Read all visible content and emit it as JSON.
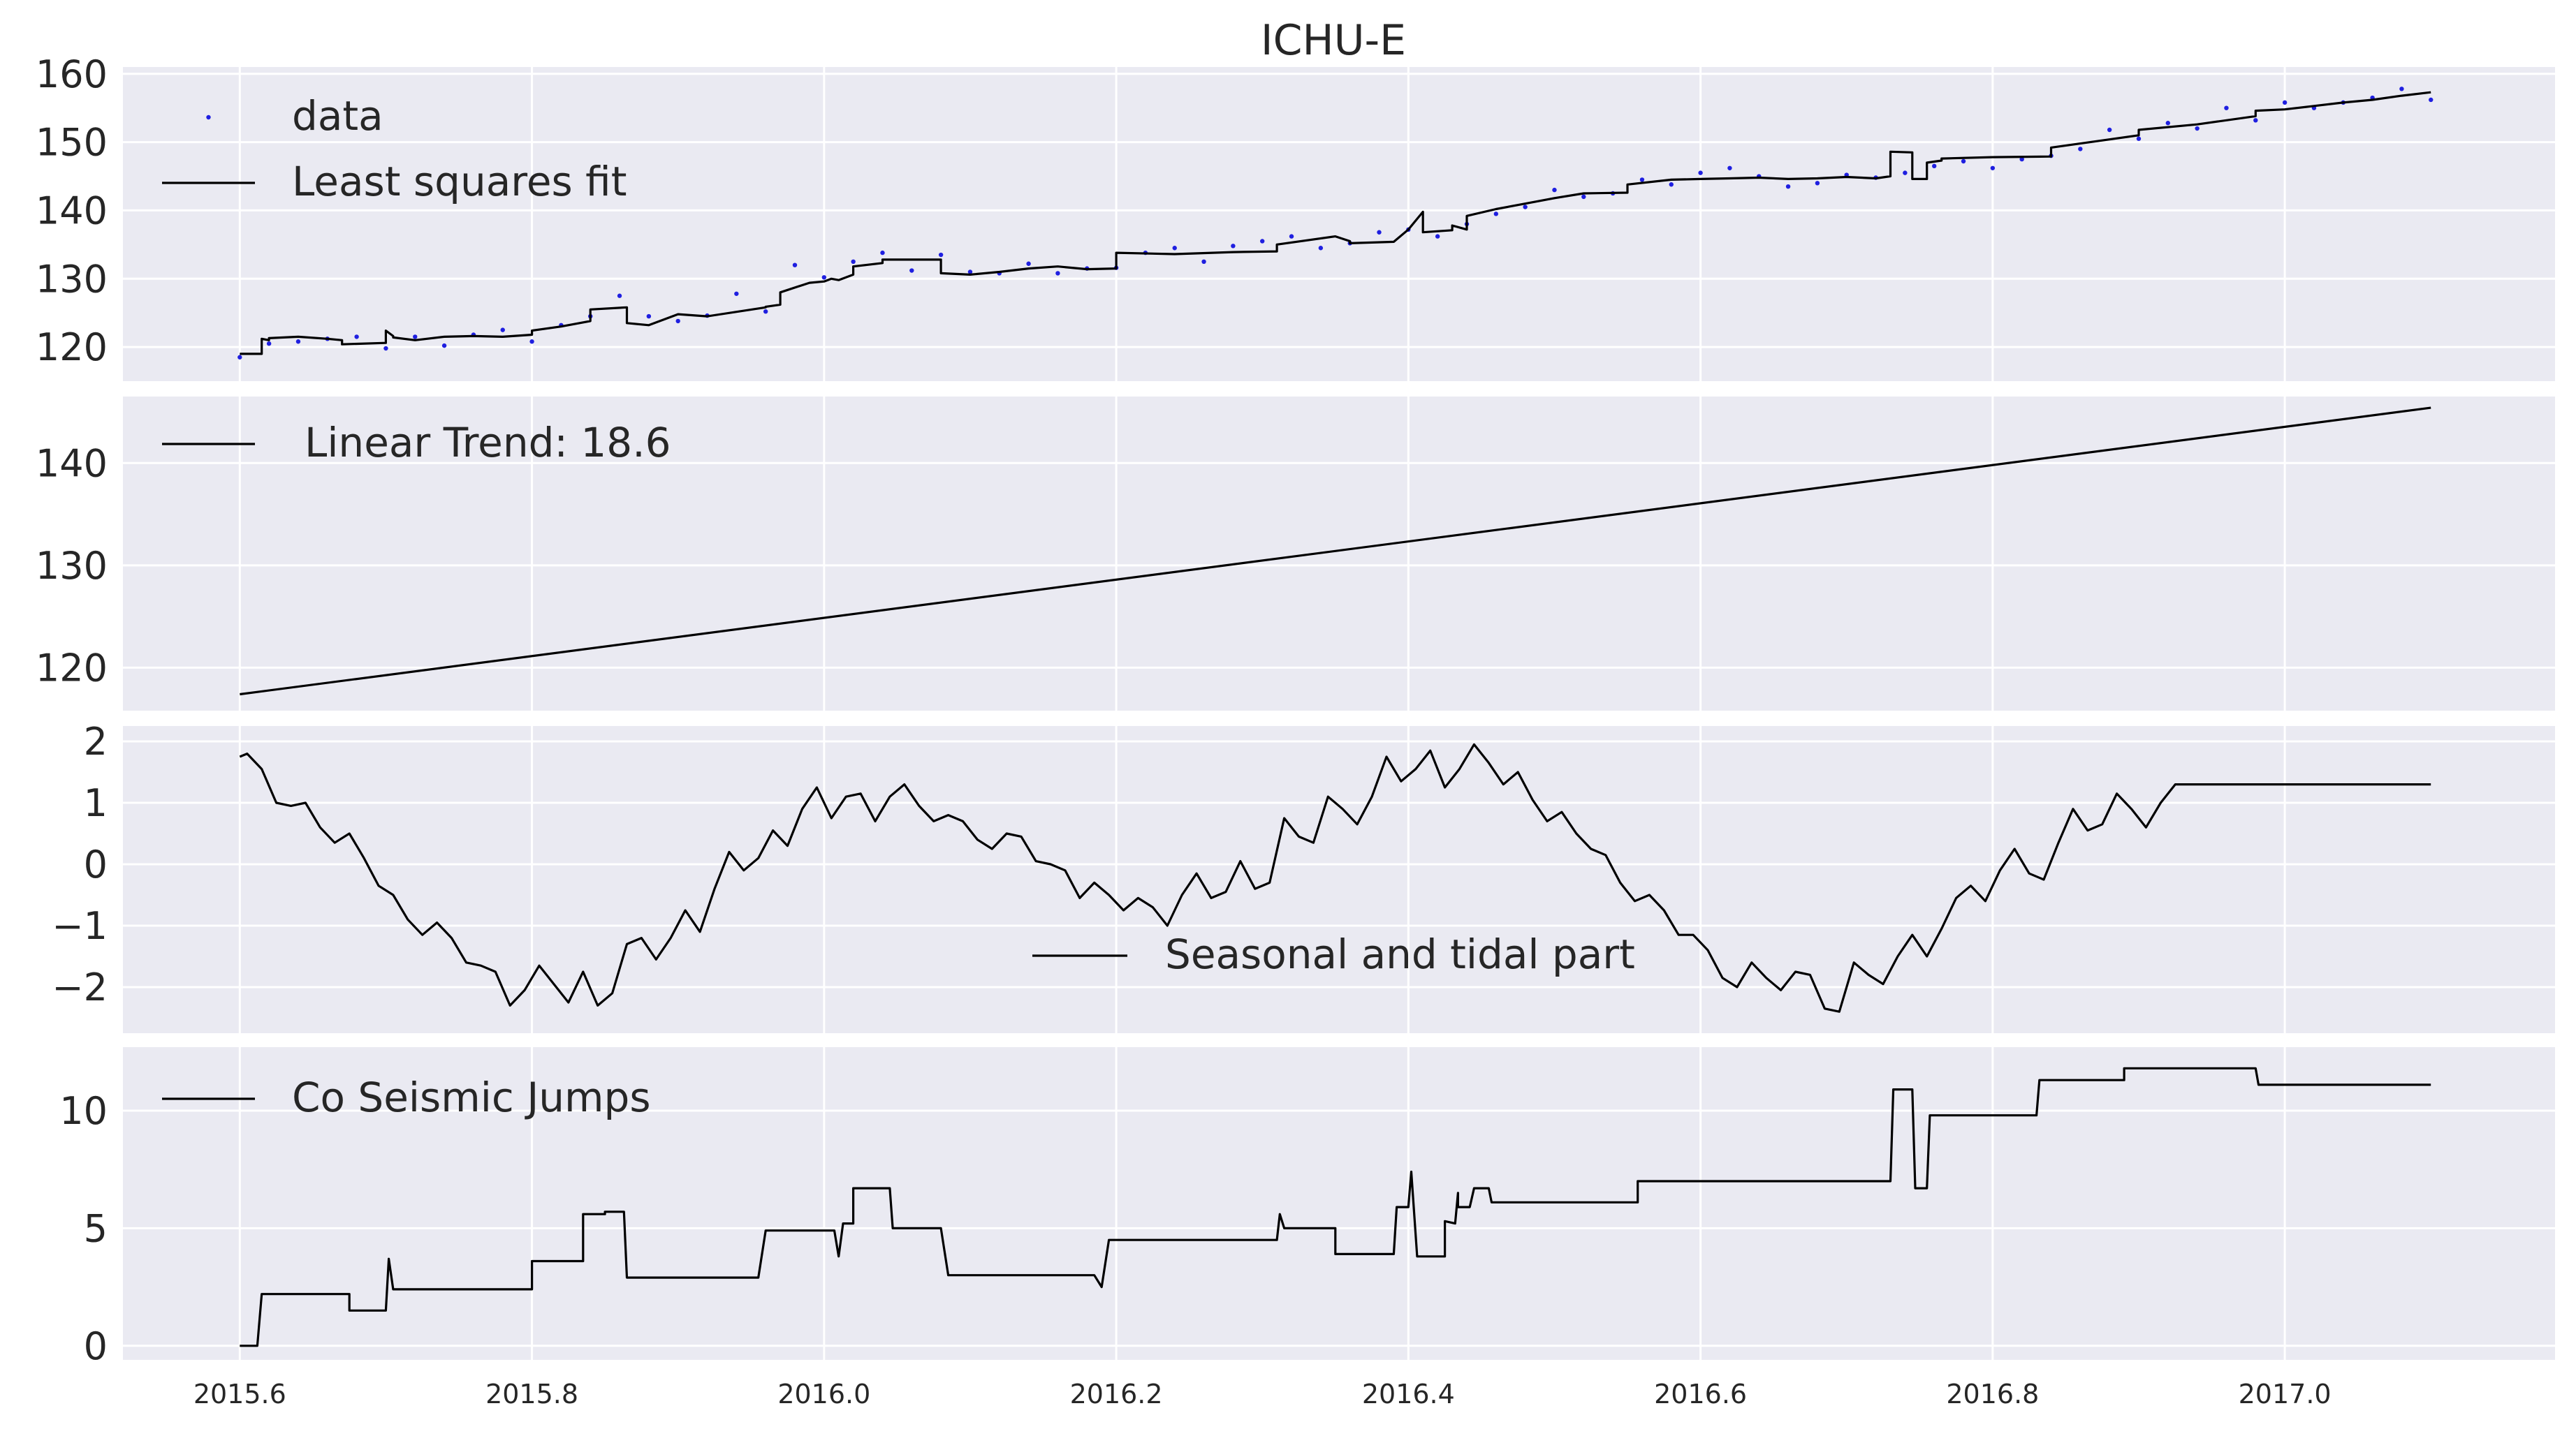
{
  "chart_data": [
    {
      "type": "line",
      "panel": "top",
      "title": "ICHU-E",
      "legend": [
        "data",
        "Least squares fit"
      ],
      "legend_placement": "top-left",
      "grid": true,
      "xlim": [
        2015.52,
        2017.185
      ],
      "ylim": [
        115,
        161
      ],
      "yticks": [
        "120",
        "130",
        "140",
        "150",
        "160"
      ],
      "series": [
        {
          "name": "data",
          "style": "scatter",
          "color": "#1f1fe0",
          "x": [
            2015.6,
            2015.62,
            2015.64,
            2015.66,
            2015.68,
            2015.7,
            2015.72,
            2015.74,
            2015.76,
            2015.78,
            2015.8,
            2015.82,
            2015.84,
            2015.86,
            2015.88,
            2015.9,
            2015.92,
            2015.94,
            2015.96,
            2015.98,
            2016.0,
            2016.02,
            2016.04,
            2016.06,
            2016.08,
            2016.1,
            2016.12,
            2016.14,
            2016.16,
            2016.18,
            2016.2,
            2016.22,
            2016.24,
            2016.26,
            2016.28,
            2016.3,
            2016.32,
            2016.34,
            2016.36,
            2016.38,
            2016.4,
            2016.42,
            2016.44,
            2016.46,
            2016.48,
            2016.5,
            2016.52,
            2016.54,
            2016.56,
            2016.58,
            2016.6,
            2016.62,
            2016.64,
            2016.66,
            2016.68,
            2016.7,
            2016.72,
            2016.74,
            2016.76,
            2016.78,
            2016.8,
            2016.82,
            2016.84,
            2016.86,
            2016.88,
            2016.9,
            2016.92,
            2016.94,
            2016.96,
            2016.98,
            2017.0,
            2017.02,
            2017.04,
            2017.06,
            2017.08,
            2017.1
          ],
          "values": [
            118.5,
            120.5,
            120.8,
            121.2,
            121.5,
            119.8,
            121.5,
            120.2,
            121.8,
            122.5,
            120.8,
            123.2,
            124.5,
            127.5,
            124.5,
            123.8,
            124.6,
            127.8,
            125.2,
            132.0,
            130.2,
            132.5,
            133.8,
            131.2,
            133.5,
            131.0,
            130.8,
            132.2,
            130.8,
            131.5,
            131.6,
            133.8,
            134.5,
            132.5,
            134.8,
            135.5,
            136.2,
            134.5,
            135.2,
            136.8,
            137.2,
            136.2,
            138.0,
            139.5,
            140.5,
            143.0,
            142.0,
            142.5,
            144.5,
            143.8,
            145.5,
            146.2,
            145.0,
            143.5,
            144.0,
            145.2,
            144.8,
            145.5,
            146.5,
            147.2,
            146.2,
            147.5,
            148.0,
            149.0,
            151.8,
            150.5,
            152.8,
            152.0,
            155.0,
            153.2,
            155.8,
            155.0,
            155.8,
            156.5,
            157.8,
            156.2
          ]
        },
        {
          "name": "Least squares fit",
          "style": "line",
          "color": "#000000",
          "x": [
            2015.6,
            2015.615,
            2015.615,
            2015.62,
            2015.62,
            2015.64,
            2015.66,
            2015.67,
            2015.67,
            2015.7,
            2015.7,
            2015.705,
            2015.705,
            2015.72,
            2015.74,
            2015.76,
            2015.78,
            2015.8,
            2015.8,
            2015.82,
            2015.84,
            2015.84,
            2015.865,
            2015.865,
            2015.88,
            2015.9,
            2015.92,
            2015.96,
            2015.96,
            2015.97,
            2015.97,
            2015.99,
            2016.0,
            2016.005,
            2016.01,
            2016.02,
            2016.02,
            2016.04,
            2016.04,
            2016.08,
            2016.08,
            2016.1,
            2016.12,
            2016.14,
            2016.16,
            2016.18,
            2016.2,
            2016.2,
            2016.24,
            2016.28,
            2016.31,
            2016.31,
            2016.35,
            2016.36,
            2016.36,
            2016.39,
            2016.4,
            2016.41,
            2016.41,
            2016.43,
            2016.43,
            2016.44,
            2016.44,
            2016.46,
            2016.48,
            2016.5,
            2016.52,
            2016.55,
            2016.55,
            2016.58,
            2016.6,
            2016.62,
            2016.64,
            2016.66,
            2016.68,
            2016.7,
            2016.72,
            2016.73,
            2016.73,
            2016.745,
            2016.745,
            2016.755,
            2016.755,
            2016.765,
            2016.765,
            2016.8,
            2016.84,
            2016.84,
            2016.86,
            2016.88,
            2016.9,
            2016.9,
            2016.94,
            2016.98,
            2016.98,
            2017.0,
            2017.02,
            2017.04,
            2017.06,
            2017.08,
            2017.1
          ],
          "values": [
            119.0,
            119.0,
            121.2,
            121.0,
            121.3,
            121.5,
            121.2,
            121.0,
            120.4,
            120.6,
            122.4,
            121.6,
            121.4,
            121.0,
            121.5,
            121.6,
            121.5,
            121.8,
            122.4,
            123.0,
            123.8,
            125.5,
            125.8,
            123.5,
            123.2,
            124.8,
            124.5,
            125.8,
            125.9,
            126.2,
            128.0,
            129.4,
            129.6,
            130.0,
            129.8,
            130.6,
            131.8,
            132.3,
            132.8,
            132.8,
            130.8,
            130.6,
            131.0,
            131.5,
            131.8,
            131.4,
            131.5,
            133.8,
            133.6,
            133.9,
            134.0,
            135.0,
            136.2,
            135.5,
            135.2,
            135.4,
            137.2,
            139.8,
            136.8,
            137.1,
            137.8,
            137.2,
            139.2,
            140.2,
            141.0,
            141.8,
            142.5,
            142.6,
            143.8,
            144.5,
            144.6,
            144.7,
            144.8,
            144.6,
            144.7,
            144.9,
            144.7,
            145.0,
            148.6,
            148.5,
            144.6,
            144.6,
            147.0,
            147.3,
            147.6,
            147.8,
            147.9,
            149.2,
            149.8,
            150.4,
            151.0,
            151.8,
            152.6,
            153.8,
            154.6,
            154.8,
            155.3,
            155.8,
            156.2,
            156.8,
            157.3
          ]
        }
      ]
    },
    {
      "type": "line",
      "panel": "second",
      "legend": [
        "Linear Trend: 18.6"
      ],
      "legend_placement": "top-left",
      "grid": true,
      "xlim": [
        2015.52,
        2017.185
      ],
      "ylim": [
        115.8,
        146.5
      ],
      "yticks": [
        "120",
        "130",
        "140"
      ],
      "series": [
        {
          "name": "Linear Trend: 18.6",
          "color": "#000000",
          "x": [
            2015.6,
            2017.1
          ],
          "values": [
            117.4,
            145.4
          ]
        }
      ]
    },
    {
      "type": "line",
      "panel": "third",
      "legend": [
        "Seasonal and tidal part"
      ],
      "legend_placement": "bottom-center",
      "grid": true,
      "xlim": [
        2015.52,
        2017.185
      ],
      "ylim": [
        -2.75,
        2.25
      ],
      "yticks": [
        "2",
        "1",
        "0",
        "−1",
        "−2"
      ],
      "series": [
        {
          "name": "Seasonal and tidal part",
          "color": "#000000",
          "x": [
            2015.6,
            2015.605,
            2015.615,
            2015.625,
            2015.635,
            2015.645,
            2015.655,
            2015.665,
            2015.675,
            2015.685,
            2015.695,
            2015.705,
            2015.715,
            2015.725,
            2015.735,
            2015.745,
            2015.755,
            2015.765,
            2015.775,
            2015.785,
            2015.795,
            2015.805,
            2015.815,
            2015.825,
            2015.835,
            2015.845,
            2015.855,
            2015.865,
            2015.875,
            2015.885,
            2015.895,
            2015.905,
            2015.915,
            2015.925,
            2015.935,
            2015.945,
            2015.955,
            2015.965,
            2015.975,
            2015.985,
            2015.995,
            2016.005,
            2016.015,
            2016.025,
            2016.035,
            2016.045,
            2016.055,
            2016.065,
            2016.075,
            2016.085,
            2016.095,
            2016.105,
            2016.115,
            2016.125,
            2016.135,
            2016.145,
            2016.155,
            2016.165,
            2016.175,
            2016.185,
            2016.195,
            2016.205,
            2016.215,
            2016.225,
            2016.235,
            2016.245,
            2016.255,
            2016.265,
            2016.275,
            2016.285,
            2016.295,
            2016.305,
            2016.315,
            2016.325,
            2016.335,
            2016.345,
            2016.355,
            2016.365,
            2016.375,
            2016.385,
            2016.395,
            2016.405,
            2016.415,
            2016.425,
            2016.435,
            2016.445,
            2016.455,
            2016.465,
            2016.475,
            2016.485,
            2016.495,
            2016.505,
            2016.515,
            2016.525,
            2016.535,
            2016.545,
            2016.555,
            2016.565,
            2016.575,
            2016.585,
            2016.595,
            2016.605,
            2016.615,
            2016.625,
            2016.635,
            2016.645,
            2016.655,
            2016.665,
            2016.675,
            2016.685,
            2016.695,
            2016.705,
            2016.715,
            2016.725,
            2016.735,
            2016.745,
            2016.755,
            2016.765,
            2016.775,
            2016.785,
            2016.795,
            2016.805,
            2016.815,
            2016.825,
            2016.835,
            2016.845,
            2016.855,
            2016.865,
            2016.875,
            2016.885,
            2016.895,
            2016.905,
            2016.915,
            2016.925,
            2016.935,
            2016.945,
            2016.955,
            2016.965,
            2016.975,
            2016.985,
            2016.995,
            2017.005,
            2017.015,
            2017.025,
            2017.035,
            2017.045,
            2017.055,
            2017.065,
            2017.075,
            2017.085,
            2017.095,
            2017.1
          ],
          "values": [
            1.75,
            1.8,
            1.55,
            1.0,
            0.95,
            1.0,
            0.6,
            0.35,
            0.5,
            0.1,
            -0.35,
            -0.5,
            -0.9,
            -1.15,
            -0.95,
            -1.2,
            -1.6,
            -1.65,
            -1.75,
            -2.3,
            -2.05,
            -1.65,
            -1.95,
            -2.25,
            -1.75,
            -2.3,
            -2.1,
            -1.3,
            -1.2,
            -1.55,
            -1.2,
            -0.75,
            -1.1,
            -0.4,
            0.2,
            -0.1,
            0.1,
            0.55,
            0.3,
            0.9,
            1.25,
            0.75,
            1.1,
            1.15,
            0.7,
            1.1,
            1.3,
            0.95,
            0.7,
            0.8,
            0.7,
            0.4,
            0.25,
            0.5,
            0.45,
            0.05,
            0.0,
            -0.1,
            -0.55,
            -0.3,
            -0.5,
            -0.75,
            -0.55,
            -0.7,
            -1.0,
            -0.5,
            -0.15,
            -0.55,
            -0.45,
            0.05,
            -0.4,
            -0.3,
            0.75,
            0.45,
            0.35,
            1.1,
            0.9,
            0.65,
            1.1,
            1.75,
            1.35,
            1.55,
            1.85,
            1.25,
            1.55,
            1.95,
            1.65,
            1.3,
            1.5,
            1.05,
            0.7,
            0.85,
            0.5,
            0.25,
            0.15,
            -0.3,
            -0.6,
            -0.5,
            -0.75,
            -1.15,
            -1.15,
            -1.4,
            -1.85,
            -2.0,
            -1.6,
            -1.85,
            -2.05,
            -1.75,
            -1.8,
            -2.35,
            -2.4,
            -1.6,
            -1.8,
            -1.95,
            -1.5,
            -1.15,
            -1.5,
            -1.05,
            -0.55,
            -0.35,
            -0.6,
            -0.1,
            0.25,
            -0.15,
            -0.25,
            0.35,
            0.9,
            0.55,
            0.65,
            1.15,
            0.9,
            0.6,
            1.0,
            1.3,
            1.3,
            1.3,
            1.3,
            1.3,
            1.3,
            1.3,
            1.3,
            1.3,
            1.3,
            1.3,
            1.3,
            1.3,
            1.3,
            1.3,
            1.3,
            1.3,
            1.3,
            1.3
          ]
        }
      ]
    },
    {
      "type": "line",
      "panel": "bottom",
      "legend": [
        "Co Seismic Jumps"
      ],
      "legend_placement": "top-left",
      "grid": true,
      "xlim": [
        2015.52,
        2017.185
      ],
      "ylim": [
        -0.6,
        12.7
      ],
      "yticks": [
        "10",
        "5",
        "0"
      ],
      "xticks": [
        "2015.6",
        "2015.8",
        "2016.0",
        "2016.2",
        "2016.4",
        "2016.6",
        "2016.8",
        "2017.0"
      ],
      "series": [
        {
          "name": "Co Seismic Jumps",
          "color": "#000000",
          "x": [
            2015.6,
            2015.612,
            2015.615,
            2015.675,
            2015.675,
            2015.7,
            2015.702,
            2015.705,
            2015.705,
            2015.8,
            2015.8,
            2015.835,
            2015.835,
            2015.85,
            2015.85,
            2015.863,
            2015.865,
            2015.955,
            2015.96,
            2016.007,
            2016.01,
            2016.013,
            2016.02,
            2016.02,
            2016.045,
            2016.047,
            2016.08,
            2016.085,
            2016.185,
            2016.19,
            2016.195,
            2016.31,
            2016.312,
            2016.315,
            2016.315,
            2016.35,
            2016.35,
            2016.39,
            2016.392,
            2016.4,
            2016.402,
            2016.406,
            2016.425,
            2016.425,
            2016.432,
            2016.434,
            2016.434,
            2016.442,
            2016.445,
            2016.455,
            2016.457,
            2016.557,
            2016.557,
            2016.73,
            2016.732,
            2016.745,
            2016.747,
            2016.755,
            2016.757,
            2016.8,
            2016.8,
            2016.83,
            2016.832,
            2016.89,
            2016.89,
            2016.98,
            2016.982,
            2017.1
          ],
          "values": [
            0.0,
            0.0,
            2.2,
            2.2,
            1.5,
            1.5,
            3.7,
            2.4,
            2.4,
            2.4,
            3.6,
            3.6,
            5.6,
            5.6,
            5.7,
            5.7,
            2.9,
            2.9,
            4.9,
            4.9,
            3.8,
            5.2,
            5.2,
            6.7,
            6.7,
            5.0,
            5.0,
            3.0,
            3.0,
            2.5,
            4.5,
            4.5,
            5.6,
            5.0,
            5.0,
            5.0,
            3.9,
            3.9,
            5.9,
            5.9,
            7.4,
            3.8,
            3.8,
            5.3,
            5.2,
            6.5,
            5.9,
            5.9,
            6.7,
            6.7,
            6.1,
            6.1,
            7.0,
            7.0,
            10.9,
            10.9,
            6.7,
            6.7,
            9.8,
            9.8,
            9.8,
            9.8,
            11.3,
            11.3,
            11.8,
            11.8,
            11.1,
            11.1
          ]
        }
      ]
    }
  ]
}
